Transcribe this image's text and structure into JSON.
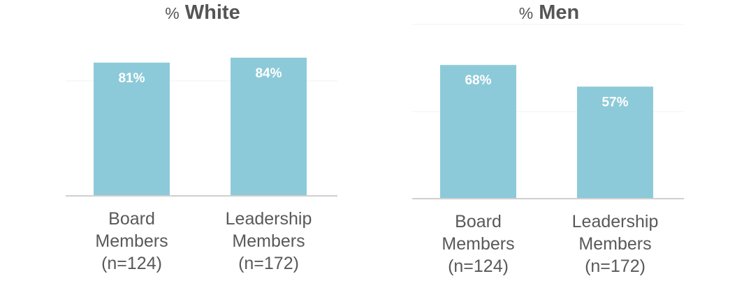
{
  "chart_data": [
    {
      "type": "bar",
      "title_prefix": "%",
      "title_main": "White",
      "categories": [
        {
          "line1": "Board",
          "line2": "Members",
          "line3": "(n=124)"
        },
        {
          "line1": "Leadership",
          "line2": "Members",
          "line3": "(n=172)"
        }
      ],
      "values": [
        81,
        84
      ],
      "data_labels": [
        "81%",
        "84%"
      ],
      "ylim": [
        0,
        100
      ],
      "grid": true,
      "bar_color": "#8dcad9"
    },
    {
      "type": "bar",
      "title_prefix": "%",
      "title_main": "Men",
      "categories": [
        {
          "line1": "Board",
          "line2": "Members",
          "line3": "(n=124)"
        },
        {
          "line1": "Leadership",
          "line2": "Members",
          "line3": "(n=172)"
        }
      ],
      "values": [
        68,
        57
      ],
      "data_labels": [
        "68%",
        "57%"
      ],
      "ylim": [
        0,
        100
      ],
      "grid": true,
      "bar_color": "#8dcad9"
    }
  ]
}
